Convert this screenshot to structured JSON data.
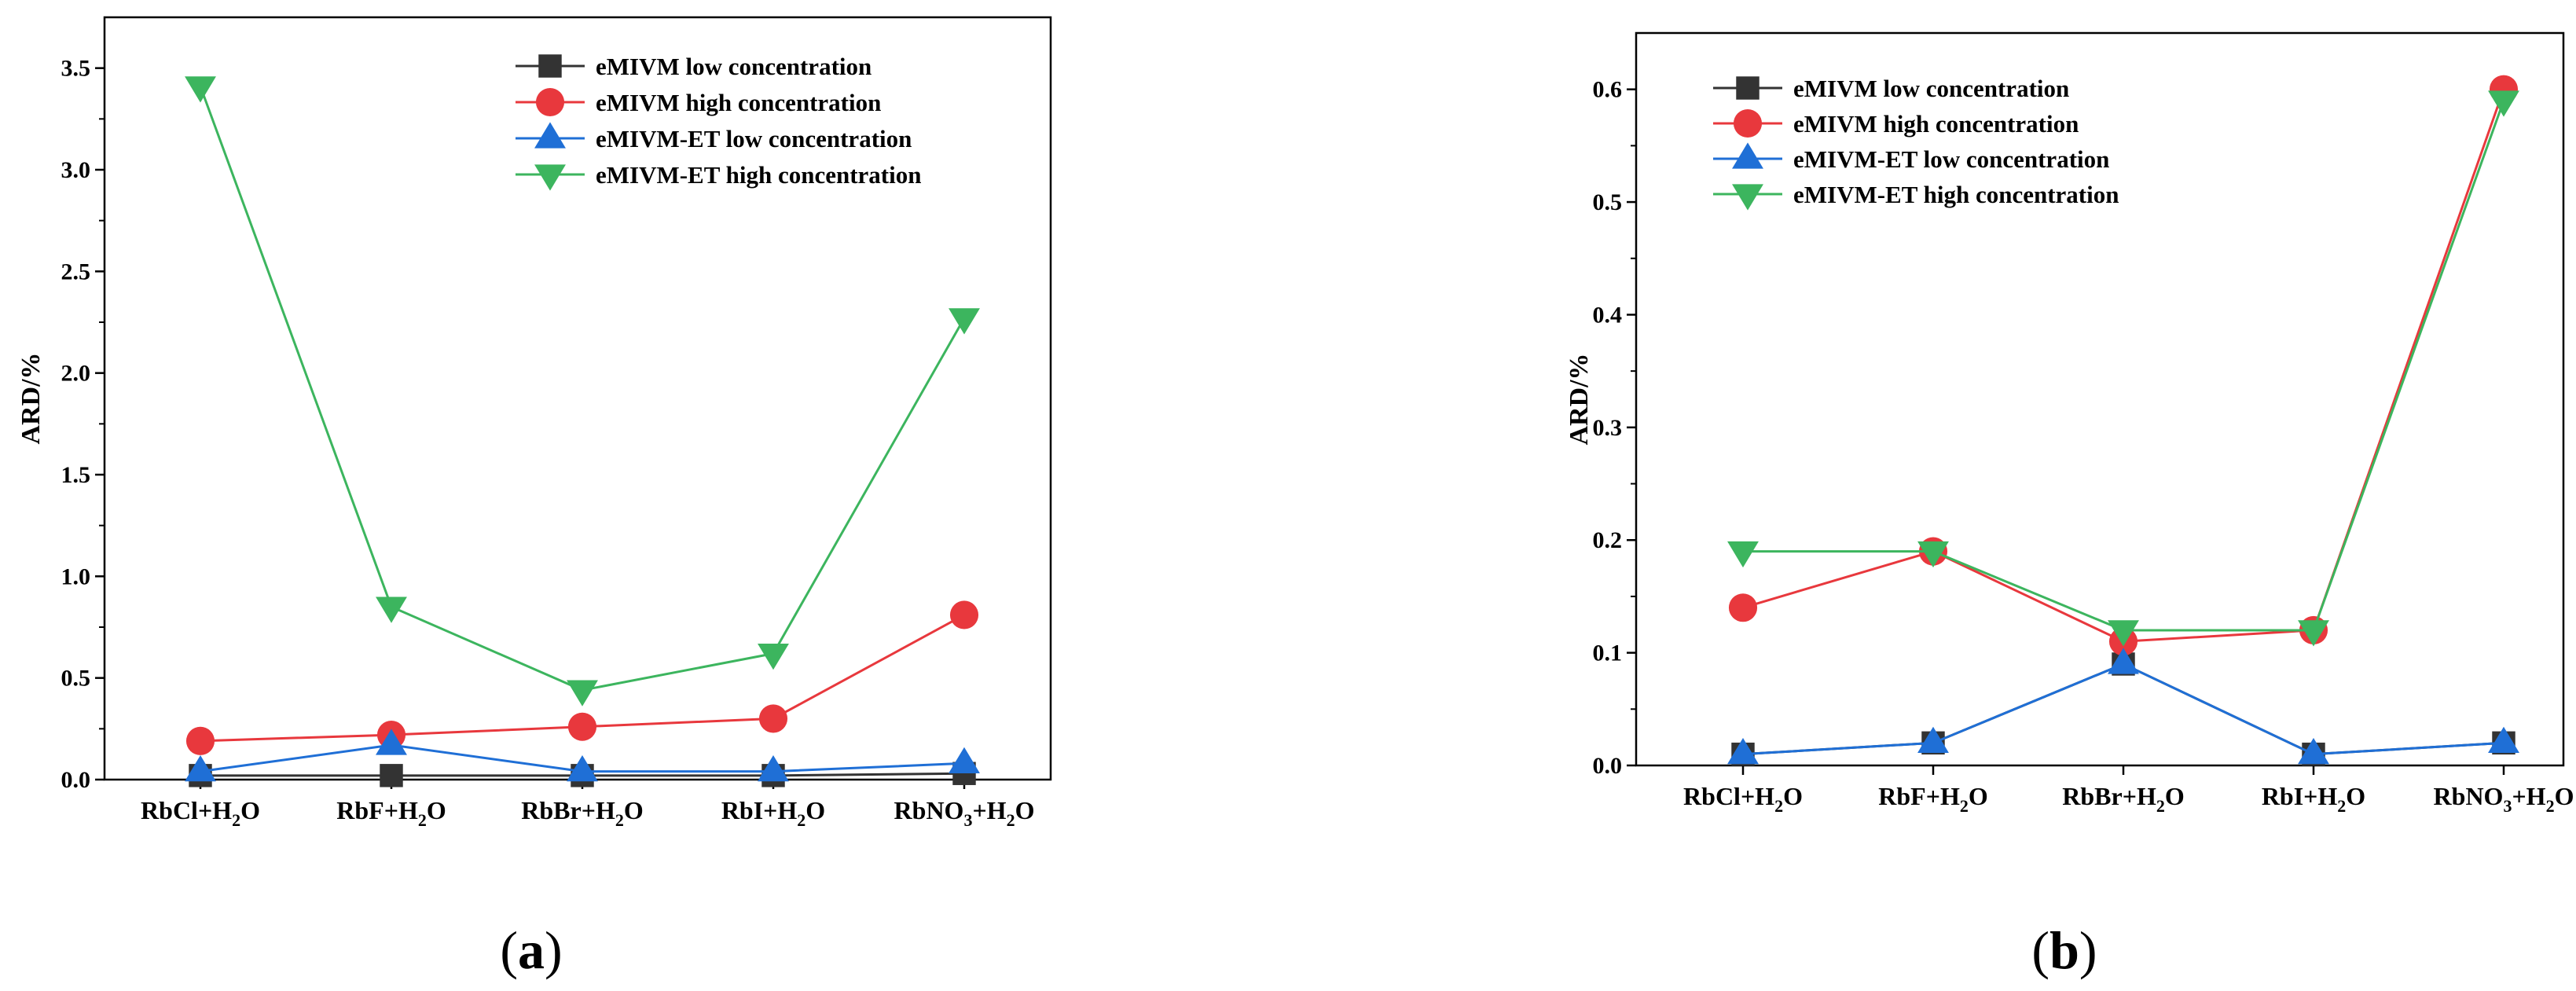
{
  "chart_data": [
    {
      "type": "line",
      "panel_label": "(a)",
      "panel_letter": "a",
      "ylabel": "ARD/%",
      "xlabel": "",
      "ylim": [
        0,
        3.75
      ],
      "yticks": [
        "0.0",
        "0.5",
        "1.0",
        "1.5",
        "2.0",
        "2.5",
        "3.0",
        "3.5"
      ],
      "ytick_values": [
        0,
        0.5,
        1.0,
        1.5,
        2.0,
        2.5,
        3.0,
        3.5
      ],
      "categories": [
        {
          "base": "RbCl+H",
          "sub": "2",
          "tail": "O"
        },
        {
          "base": "RbF+H",
          "sub": "2",
          "tail": "O"
        },
        {
          "base": "RbBr+H",
          "sub": "2",
          "tail": "O"
        },
        {
          "base": "RbI+H",
          "sub": "2",
          "tail": "O"
        },
        {
          "base": "RbNO",
          "sub": "3",
          "tail": "+H",
          "sub2": "2",
          "tail2": "O"
        }
      ],
      "series": [
        {
          "name": "eMIVM low concentration",
          "color": "#333333",
          "marker": "square",
          "values": [
            0.02,
            0.02,
            0.02,
            0.02,
            0.03
          ]
        },
        {
          "name": "eMIVM high concentration",
          "color": "#e8383d",
          "marker": "circle",
          "values": [
            0.19,
            0.22,
            0.26,
            0.3,
            0.81
          ]
        },
        {
          "name": "eMIVM-ET low concentration",
          "color": "#1f6fd6",
          "marker": "triangle-up",
          "values": [
            0.04,
            0.17,
            0.04,
            0.04,
            0.08
          ]
        },
        {
          "name": "eMIVM-ET high concentration",
          "color": "#3cb55e",
          "marker": "triangle-down",
          "values": [
            3.41,
            0.85,
            0.44,
            0.62,
            2.27
          ]
        }
      ],
      "legend": "top-right"
    },
    {
      "type": "line",
      "panel_label": "(b)",
      "panel_letter": "b",
      "ylabel": "ARD/%",
      "xlabel": "",
      "ylim": [
        0,
        0.65
      ],
      "yticks": [
        "0.0",
        "0.1",
        "0.2",
        "0.3",
        "0.4",
        "0.5",
        "0.6"
      ],
      "ytick_values": [
        0,
        0.1,
        0.2,
        0.3,
        0.4,
        0.5,
        0.6
      ],
      "categories": [
        {
          "base": "RbCl+H",
          "sub": "2",
          "tail": "O"
        },
        {
          "base": "RbF+H",
          "sub": "2",
          "tail": "O"
        },
        {
          "base": "RbBr+H",
          "sub": "2",
          "tail": "O"
        },
        {
          "base": "RbI+H",
          "sub": "2",
          "tail": "O"
        },
        {
          "base": "RbNO",
          "sub": "3",
          "tail": "+H",
          "sub2": "2",
          "tail2": "O"
        }
      ],
      "series": [
        {
          "name": "eMIVM low concentration",
          "color": "#333333",
          "marker": "square",
          "values": [
            0.01,
            0.02,
            0.09,
            0.01,
            0.02
          ]
        },
        {
          "name": "eMIVM high concentration",
          "color": "#e8383d",
          "marker": "circle",
          "values": [
            0.14,
            0.19,
            0.11,
            0.12,
            0.6
          ]
        },
        {
          "name": "eMIVM-ET low concentration",
          "color": "#1f6fd6",
          "marker": "triangle-up",
          "values": [
            0.01,
            0.02,
            0.09,
            0.01,
            0.02
          ]
        },
        {
          "name": "eMIVM-ET high concentration",
          "color": "#3cb55e",
          "marker": "triangle-down",
          "values": [
            0.19,
            0.19,
            0.12,
            0.12,
            0.59
          ]
        }
      ],
      "legend": "top-left"
    }
  ]
}
